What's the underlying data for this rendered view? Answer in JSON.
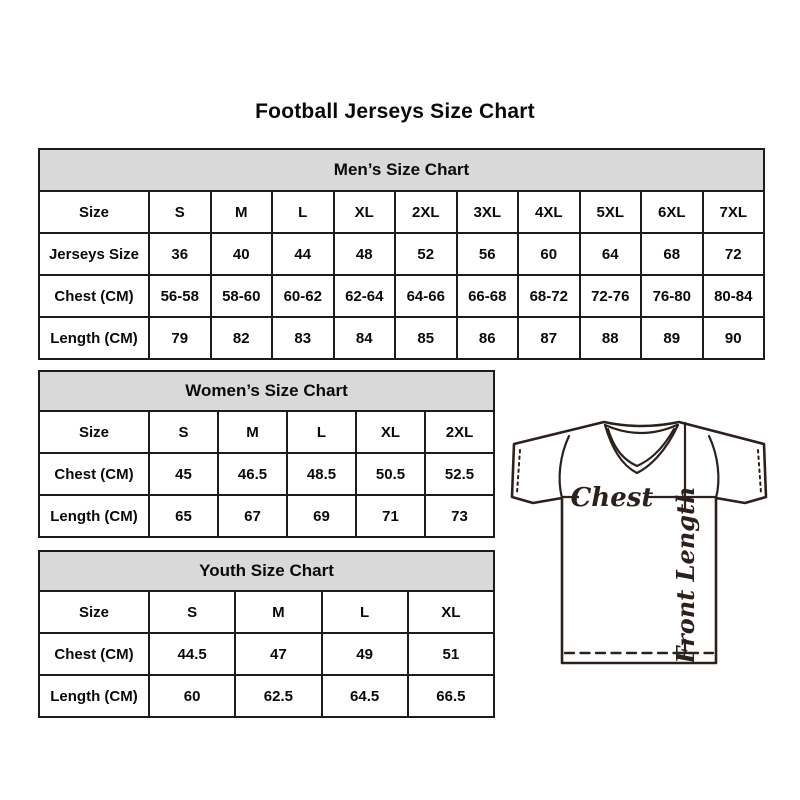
{
  "page": {
    "title": "Football Jerseys Size Chart"
  },
  "tables": [
    {
      "id": "mens",
      "title": "Men’s Size Chart",
      "header_row": [
        "Size",
        "S",
        "M",
        "L",
        "XL",
        "2XL",
        "3XL",
        "4XL",
        "5XL",
        "6XL",
        "7XL"
      ],
      "rows": [
        [
          "Jerseys Size",
          "36",
          "40",
          "44",
          "48",
          "52",
          "56",
          "60",
          "64",
          "68",
          "72"
        ],
        [
          "Chest (CM)",
          "56-58",
          "58-60",
          "60-62",
          "62-64",
          "64-66",
          "66-68",
          "68-72",
          "72-76",
          "76-80",
          "80-84"
        ],
        [
          "Length (CM)",
          "79",
          "82",
          "83",
          "84",
          "85",
          "86",
          "87",
          "88",
          "89",
          "90"
        ]
      ]
    },
    {
      "id": "womens",
      "title": "Women’s Size Chart",
      "header_row": [
        "Size",
        "S",
        "M",
        "L",
        "XL",
        "2XL"
      ],
      "rows": [
        [
          "Chest (CM)",
          "45",
          "46.5",
          "48.5",
          "50.5",
          "52.5"
        ],
        [
          "Length (CM)",
          "65",
          "67",
          "69",
          "71",
          "73"
        ]
      ]
    },
    {
      "id": "youth",
      "title": "Youth Size Chart",
      "header_row": [
        "Size",
        "S",
        "M",
        "L",
        "XL"
      ],
      "rows": [
        [
          "Chest (CM)",
          "44.5",
          "47",
          "49",
          "51"
        ],
        [
          "Length (CM)",
          "60",
          "62.5",
          "64.5",
          "66.5"
        ]
      ]
    }
  ],
  "diagram": {
    "chest_label": "Chest",
    "front_length_label": "Front Length"
  },
  "colors": {
    "table_header_bg": "#d9d9d9",
    "table_border": "#1c1c1c",
    "text": "#0a0a0a",
    "jersey_line": "#2b211c",
    "background": "#ffffff"
  }
}
